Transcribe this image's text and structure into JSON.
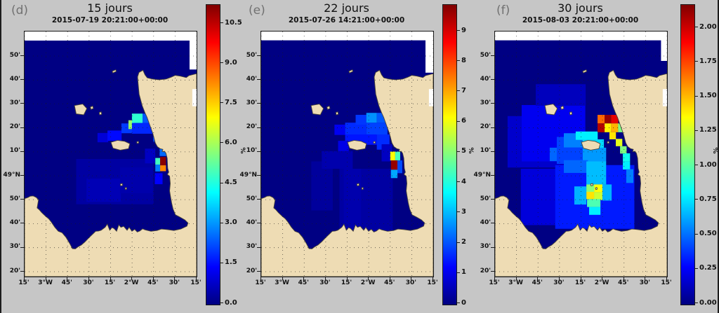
{
  "figure": {
    "background": "#c6c6c6",
    "edge_border_color": "#1c1c1c",
    "land_color": "#eedcb4",
    "coast_stroke_color": "#4a463c",
    "sea_color": "#000083",
    "nodata_color": "#ffffff",
    "grid_color": "#1a1a1a",
    "panel_letter_color": "#717171",
    "colormap": "jet"
  },
  "chart_data": [
    {
      "type": "heatmap",
      "panel_letter": "(d)",
      "title": "15 jours",
      "subtitle": "2015-07-19 20:21:00+00:00",
      "unit": "%",
      "colorbar_vmax": 10.5,
      "colorbar_tick_labels": [
        "10.5",
        "9.0",
        "7.5",
        "6.0",
        "4.5",
        "3.0",
        "1.5",
        "0.0"
      ],
      "colorbar_tick_values": [
        10.5,
        9.0,
        7.5,
        6.0,
        4.5,
        3.0,
        1.5,
        0.0
      ],
      "x_tick_labels": [
        "15'",
        "3°W",
        "45'",
        "30'",
        "15'",
        "2°W",
        "45'",
        "30'",
        "15'"
      ],
      "y_tick_labels": [
        "50'",
        "40'",
        "30'",
        "20'",
        "10'",
        "49°N",
        "50'",
        "40'",
        "30'",
        "20'"
      ],
      "cells_format": "[x_frac,y_frac,w_frac,h_frac,value_pct] fractions of map area, origin top-left",
      "nodata_regions": [
        [
          0,
          0,
          1,
          0.037
        ],
        [
          0.959,
          0,
          0.041,
          0.155
        ],
        [
          0.975,
          0.235,
          0.025,
          0.07
        ]
      ],
      "cells": [
        [
          0.3,
          0.52,
          0.45,
          0.185,
          0.35
        ],
        [
          0.36,
          0.6,
          0.2,
          0.095,
          0.55
        ],
        [
          0.555,
          0.555,
          0.19,
          0.105,
          0.45
        ],
        [
          0.424,
          0.414,
          0.062,
          0.038,
          0.9
        ],
        [
          0.482,
          0.404,
          0.082,
          0.042,
          1.4
        ],
        [
          0.563,
          0.375,
          0.062,
          0.04,
          1.9
        ],
        [
          0.604,
          0.362,
          0.034,
          0.036,
          5.5
        ],
        [
          0.624,
          0.335,
          0.062,
          0.038,
          4.4
        ],
        [
          0.686,
          0.335,
          0.062,
          0.038,
          2.2
        ],
        [
          0.624,
          0.373,
          0.135,
          0.044,
          1.7
        ],
        [
          0.747,
          0.404,
          0.07,
          0.046,
          2.1
        ],
        [
          0.785,
          0.442,
          0.05,
          0.066,
          2.4
        ],
        [
          0.7,
          0.478,
          0.06,
          0.06,
          0.7
        ],
        [
          0.76,
          0.516,
          0.028,
          0.027,
          4.6
        ],
        [
          0.788,
          0.512,
          0.034,
          0.034,
          10.4
        ],
        [
          0.76,
          0.543,
          0.028,
          0.028,
          2.6
        ],
        [
          0.788,
          0.546,
          0.034,
          0.024,
          7.8
        ],
        [
          0.757,
          0.578,
          0.045,
          0.045,
          1.3
        ]
      ]
    },
    {
      "type": "heatmap",
      "panel_letter": "(e)",
      "title": "22 jours",
      "subtitle": "2015-07-26 14:21:00+00:00",
      "unit": "%",
      "colorbar_vmax": 9,
      "colorbar_tick_labels": [
        "9",
        "8",
        "7",
        "6",
        "5",
        "4",
        "3",
        "2",
        "1",
        "0"
      ],
      "colorbar_tick_values": [
        9,
        8,
        7,
        6,
        5,
        4,
        3,
        2,
        1,
        0
      ],
      "x_tick_labels": [
        "15'",
        "3°W",
        "45'",
        "30'",
        "15'",
        "2°W",
        "45'",
        "30'",
        "15'"
      ],
      "y_tick_labels": [
        "50'",
        "40'",
        "30'",
        "20'",
        "10'",
        "49°N",
        "50'",
        "40'",
        "30'",
        "20'"
      ],
      "cells_format": "[x_frac,y_frac,w_frac,h_frac,value_pct] fractions of map area, origin top-left",
      "nodata_regions": [
        [
          0,
          0,
          1,
          0.036
        ],
        [
          0.955,
          0,
          0.045,
          0.168
        ],
        [
          0.975,
          0.235,
          0.025,
          0.07
        ]
      ],
      "cells": [
        [
          0.291,
          0.53,
          0.125,
          0.2,
          0.25
        ],
        [
          0.455,
          0.56,
          0.31,
          0.26,
          0.3
        ],
        [
          0.48,
          0.56,
          0.1,
          0.26,
          0.4
        ],
        [
          0.352,
          0.488,
          0.18,
          0.072,
          0.4
        ],
        [
          0.426,
          0.38,
          0.062,
          0.042,
          1.0
        ],
        [
          0.488,
          0.372,
          0.123,
          0.05,
          1.5
        ],
        [
          0.611,
          0.372,
          0.123,
          0.05,
          1.7
        ],
        [
          0.549,
          0.34,
          0.062,
          0.04,
          1.6
        ],
        [
          0.611,
          0.332,
          0.061,
          0.04,
          2.4
        ],
        [
          0.672,
          0.332,
          0.061,
          0.04,
          1.9
        ],
        [
          0.488,
          0.42,
          0.184,
          0.042,
          1.3
        ],
        [
          0.672,
          0.42,
          0.074,
          0.062,
          1.5
        ],
        [
          0.447,
          0.446,
          0.062,
          0.042,
          0.9
        ],
        [
          0.7,
          0.46,
          0.06,
          0.07,
          0.6
        ],
        [
          0.75,
          0.49,
          0.029,
          0.036,
          5.6
        ],
        [
          0.779,
          0.49,
          0.029,
          0.036,
          4.0
        ],
        [
          0.791,
          0.526,
          0.029,
          0.052,
          1.8
        ],
        [
          0.754,
          0.526,
          0.038,
          0.038,
          8.8
        ],
        [
          0.754,
          0.564,
          0.038,
          0.034,
          2.6
        ]
      ]
    },
    {
      "type": "heatmap",
      "panel_letter": "(f)",
      "title": "30 jours",
      "subtitle": "2015-08-03 20:21:00+00:00",
      "unit": "%",
      "colorbar_vmax": 2,
      "colorbar_tick_labels": [
        "2.00",
        "1.75",
        "1.50",
        "1.25",
        "1.00",
        "0.75",
        "0.50",
        "0.25",
        "0.00"
      ],
      "colorbar_tick_values": [
        2.0,
        1.75,
        1.5,
        1.25,
        1.0,
        0.75,
        0.5,
        0.25,
        0.0
      ],
      "x_tick_labels": [
        "15'",
        "3°W",
        "45'",
        "30'",
        "15'",
        "2°W",
        "45'",
        "30'",
        "15'"
      ],
      "y_tick_labels": [
        "50'",
        "40'",
        "30'",
        "20'",
        "10'",
        "49°N",
        "50'",
        "40'",
        "30'",
        "20'"
      ],
      "cells_format": "[x_frac,y_frac,w_frac,h_frac,value_pct] fractions of map area, origin top-left",
      "nodata_regions": [
        [
          0,
          0,
          1,
          0.036
        ],
        [
          0.965,
          0,
          0.035,
          0.12
        ],
        [
          0.975,
          0.235,
          0.025,
          0.07
        ]
      ],
      "cells": [
        [
          0.073,
          0.345,
          0.38,
          0.21,
          0.15
        ],
        [
          0.155,
          0.3,
          0.37,
          0.23,
          0.22
        ],
        [
          0.237,
          0.215,
          0.29,
          0.088,
          0.12
        ],
        [
          0.15,
          0.56,
          0.27,
          0.23,
          0.18
        ],
        [
          0.35,
          0.545,
          0.46,
          0.26,
          0.3
        ],
        [
          0.318,
          0.474,
          0.155,
          0.055,
          0.45
        ],
        [
          0.359,
          0.43,
          0.165,
          0.11,
          0.38
        ],
        [
          0.4,
          0.415,
          0.112,
          0.058,
          0.5
        ],
        [
          0.469,
          0.408,
          0.128,
          0.034,
          0.72
        ],
        [
          0.51,
          0.44,
          0.123,
          0.036,
          0.68
        ],
        [
          0.51,
          0.474,
          0.136,
          0.058,
          0.55
        ],
        [
          0.4,
          0.525,
          0.14,
          0.052,
          0.45
        ],
        [
          0.531,
          0.53,
          0.115,
          0.094,
          0.62
        ],
        [
          0.596,
          0.34,
          0.041,
          0.035,
          1.55
        ],
        [
          0.637,
          0.34,
          0.038,
          0.035,
          1.95
        ],
        [
          0.675,
          0.34,
          0.041,
          0.035,
          1.8
        ],
        [
          0.596,
          0.375,
          0.041,
          0.036,
          1.9
        ],
        [
          0.637,
          0.375,
          0.038,
          0.036,
          1.28
        ],
        [
          0.675,
          0.375,
          0.041,
          0.036,
          1.4
        ],
        [
          0.716,
          0.375,
          0.041,
          0.036,
          1.0
        ],
        [
          0.757,
          0.375,
          0.04,
          0.036,
          0.9
        ],
        [
          0.665,
          0.411,
          0.038,
          0.029,
          1.3
        ],
        [
          0.702,
          0.438,
          0.038,
          0.03,
          1.2
        ],
        [
          0.727,
          0.468,
          0.038,
          0.03,
          1.0
        ],
        [
          0.743,
          0.497,
          0.042,
          0.034,
          0.78
        ],
        [
          0.743,
          0.531,
          0.042,
          0.032,
          0.72
        ],
        [
          0.763,
          0.562,
          0.041,
          0.056,
          0.5
        ],
        [
          0.531,
          0.652,
          0.046,
          0.032,
          1.3
        ],
        [
          0.576,
          0.624,
          0.05,
          0.032,
          1.25
        ],
        [
          0.576,
          0.656,
          0.05,
          0.032,
          1.15
        ],
        [
          0.531,
          0.624,
          0.046,
          0.03,
          1.02
        ],
        [
          0.535,
          0.684,
          0.078,
          0.032,
          0.9
        ],
        [
          0.547,
          0.716,
          0.066,
          0.032,
          0.72
        ],
        [
          0.461,
          0.632,
          0.07,
          0.074,
          0.6
        ],
        [
          0.624,
          0.624,
          0.054,
          0.066,
          0.6
        ]
      ]
    }
  ]
}
